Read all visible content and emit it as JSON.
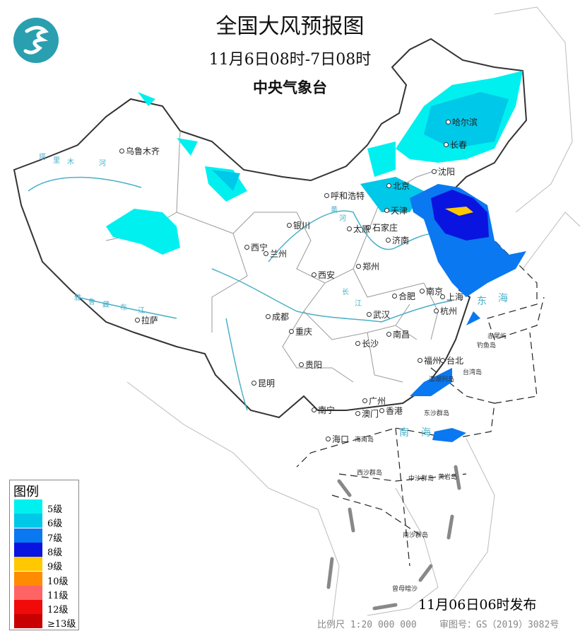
{
  "header": {
    "title": "全国大风预报图",
    "period": "11月6日08时-7日08时",
    "issuer": "中央气象台"
  },
  "logo": {
    "name": "cma-logo",
    "color": "#2a9fb0"
  },
  "cities": [
    {
      "name": "乌鲁木齐"
    },
    {
      "name": "哈尔滨"
    },
    {
      "name": "长春"
    },
    {
      "name": "沈阳"
    },
    {
      "name": "北京"
    },
    {
      "name": "天津"
    },
    {
      "name": "呼和浩特"
    },
    {
      "name": "石家庄"
    },
    {
      "name": "太原"
    },
    {
      "name": "济南"
    },
    {
      "name": "银川"
    },
    {
      "name": "西宁"
    },
    {
      "name": "兰州"
    },
    {
      "name": "西安"
    },
    {
      "name": "郑州"
    },
    {
      "name": "合肥"
    },
    {
      "name": "南京"
    },
    {
      "name": "上海"
    },
    {
      "name": "杭州"
    },
    {
      "name": "武汉"
    },
    {
      "name": "成都"
    },
    {
      "name": "重庆"
    },
    {
      "name": "长沙"
    },
    {
      "name": "南昌"
    },
    {
      "name": "拉萨"
    },
    {
      "name": "贵阳"
    },
    {
      "name": "昆明"
    },
    {
      "name": "福州"
    },
    {
      "name": "台北"
    },
    {
      "name": "广州"
    },
    {
      "name": "南宁"
    },
    {
      "name": "澳门"
    },
    {
      "name": "香港"
    },
    {
      "name": "海口"
    }
  ],
  "islands": [
    "台湾岛",
    "海南岛",
    "东沙群岛",
    "赤尾屿",
    "钓鱼岛",
    "澎湖列岛",
    "西沙群岛",
    "中沙群岛",
    "黄岩岛",
    "南沙群岛",
    "曾母暗沙"
  ],
  "water_labels": [
    "东",
    "海",
    "南",
    "海",
    "长",
    "江",
    "黄",
    "河",
    "塔",
    "里",
    "木",
    "河",
    "雅",
    "鲁",
    "藏",
    "布",
    "江"
  ],
  "legend": {
    "title": "图例",
    "items": [
      {
        "label": "5级",
        "color": "#00f0f0"
      },
      {
        "label": "6级",
        "color": "#00c8e8"
      },
      {
        "label": "7级",
        "color": "#0a78f0"
      },
      {
        "label": "8级",
        "color": "#0a14e0"
      },
      {
        "label": "9级",
        "color": "#ffc800"
      },
      {
        "label": "10级",
        "color": "#ff8c00"
      },
      {
        "label": "11级",
        "color": "#ff6464"
      },
      {
        "label": "12级",
        "color": "#f00a0a"
      },
      {
        "label": "≥13级",
        "color": "#c80000"
      }
    ]
  },
  "footer": {
    "issued": "11月06日06时发布",
    "scale": "比例尺 1:20 000 000",
    "review": "审图号：GS（2019）3082号"
  }
}
